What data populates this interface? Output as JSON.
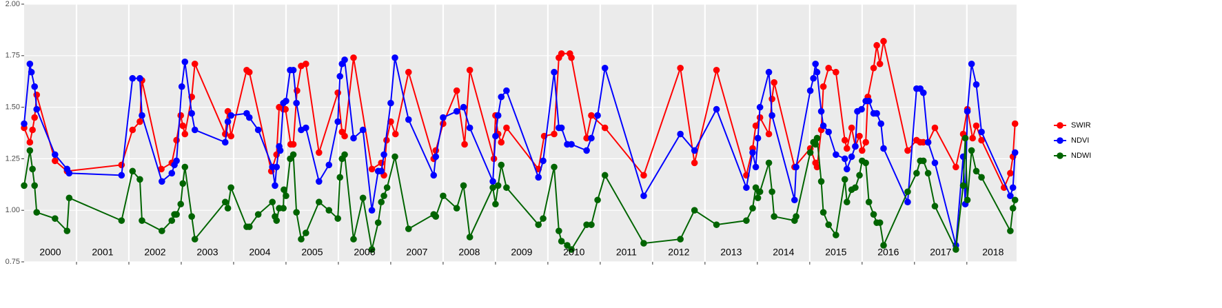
{
  "chart_data": {
    "type": "line",
    "xlim": [
      2000,
      2018.95
    ],
    "xticks": [
      2001,
      2002,
      2003,
      2004,
      2005,
      2006,
      2007,
      2008,
      2009,
      2010,
      2011,
      2012,
      2013,
      2014,
      2015,
      2016,
      2017,
      2018
    ],
    "ylim": [
      0.75,
      2.0
    ],
    "yticks": [
      0.75,
      {
        "value": 1,
        "label": "1.00"
      },
      1.25,
      {
        "value": 1.5,
        "label": "1.50"
      },
      1.75,
      {
        "value": 2,
        "label": "2.00"
      }
    ],
    "grid": true,
    "legend": "right",
    "annotations": [
      {
        "x": 2000.5,
        "text": "2000"
      },
      {
        "x": 2001.5,
        "text": "2001"
      },
      {
        "x": 2002.5,
        "text": "2002"
      },
      {
        "x": 2003.5,
        "text": "2003"
      },
      {
        "x": 2004.5,
        "text": "2004"
      },
      {
        "x": 2005.5,
        "text": "2005"
      },
      {
        "x": 2006.5,
        "text": "2006"
      },
      {
        "x": 2007.5,
        "text": "2007"
      },
      {
        "x": 2008.5,
        "text": "2008"
      },
      {
        "x": 2009.5,
        "text": "2009"
      },
      {
        "x": 2010.5,
        "text": "2010"
      },
      {
        "x": 2011.5,
        "text": "2011"
      },
      {
        "x": 2012.5,
        "text": "2012"
      },
      {
        "x": 2013.5,
        "text": "2013"
      },
      {
        "x": 2014.5,
        "text": "2014"
      },
      {
        "x": 2015.5,
        "text": "2015"
      },
      {
        "x": 2016.5,
        "text": "2016"
      },
      {
        "x": 2017.5,
        "text": "2017"
      },
      {
        "x": 2018.5,
        "text": "2018"
      }
    ],
    "series": [
      {
        "name": "SWIR",
        "color": "#ff0000",
        "x": [
          2000.0,
          2000.11,
          2000.16,
          2000.2,
          2000.24,
          2000.59,
          2000.82,
          2001.86,
          2002.07,
          2002.21,
          2002.25,
          2002.62,
          2002.82,
          2002.91,
          2002.99,
          2003.03,
          2003.07,
          2003.2,
          2003.26,
          2003.84,
          2003.89,
          2003.95,
          2004.25,
          2004.3,
          2004.72,
          2004.82,
          2004.87,
          2004.95,
          2004.99,
          2005.09,
          2005.14,
          2005.21,
          2005.29,
          2005.38,
          2005.63,
          2005.99,
          2006.07,
          2006.12,
          2006.29,
          2006.64,
          2006.82,
          2006.87,
          2006.92,
          2007.0,
          2007.09,
          2007.34,
          2007.82,
          2007.86,
          2008.0,
          2008.26,
          2008.41,
          2008.51,
          2008.97,
          2009.0,
          2009.05,
          2009.11,
          2009.21,
          2009.82,
          2009.93,
          2010.12,
          2010.21,
          2010.26,
          2010.42,
          2010.45,
          2010.74,
          2010.83,
          2011.09,
          2011.83,
          2012.53,
          2012.8,
          2013.22,
          2013.79,
          2013.91,
          2013.97,
          2014.05,
          2014.22,
          2014.28,
          2014.32,
          2014.71,
          2015.01,
          2015.11,
          2015.14,
          2015.22,
          2015.26,
          2015.36,
          2015.5,
          2015.67,
          2015.71,
          2015.8,
          2015.87,
          2015.95,
          2016.0,
          2016.07,
          2016.11,
          2016.22,
          2016.28,
          2016.34,
          2016.41,
          2016.87,
          2017.04,
          2017.11,
          2017.17,
          2017.26,
          2017.39,
          2017.79,
          2017.93,
          2018.01,
          2018.11,
          2018.18,
          2018.28,
          2018.71,
          2018.83,
          2018.88,
          2018.92
        ],
        "values": [
          1.4,
          1.33,
          1.39,
          1.45,
          1.56,
          1.24,
          1.19,
          1.22,
          1.39,
          1.43,
          1.63,
          1.2,
          1.23,
          1.34,
          1.46,
          1.41,
          1.37,
          1.55,
          1.71,
          1.37,
          1.48,
          1.36,
          1.68,
          1.67,
          1.19,
          1.27,
          1.5,
          1.49,
          1.49,
          1.32,
          1.32,
          1.58,
          1.7,
          1.71,
          1.28,
          1.57,
          1.38,
          1.36,
          1.74,
          1.2,
          1.23,
          1.17,
          1.34,
          1.43,
          1.37,
          1.67,
          1.25,
          1.29,
          1.42,
          1.58,
          1.32,
          1.68,
          1.25,
          1.46,
          1.37,
          1.33,
          1.4,
          1.2,
          1.36,
          1.37,
          1.74,
          1.76,
          1.76,
          1.74,
          1.35,
          1.46,
          1.4,
          1.17,
          1.69,
          1.23,
          1.68,
          1.17,
          1.3,
          1.41,
          1.45,
          1.37,
          1.54,
          1.62,
          1.21,
          1.3,
          1.23,
          1.21,
          1.39,
          1.6,
          1.69,
          1.67,
          1.34,
          1.3,
          1.4,
          1.31,
          1.36,
          1.29,
          1.33,
          1.55,
          1.69,
          1.8,
          1.71,
          1.82,
          1.29,
          1.34,
          1.33,
          1.33,
          1.33,
          1.4,
          1.21,
          1.37,
          1.49,
          1.35,
          1.41,
          1.34,
          1.11,
          1.18,
          1.26,
          1.42
        ]
      },
      {
        "name": "NDVI",
        "color": "#0000ff",
        "x": [
          2000.0,
          2000.11,
          2000.14,
          2000.2,
          2000.24,
          2000.59,
          2000.82,
          2000.86,
          2001.86,
          2002.07,
          2002.21,
          2002.25,
          2002.63,
          2002.82,
          2002.87,
          2002.91,
          2003.01,
          2003.07,
          2003.2,
          2003.26,
          2003.84,
          2003.89,
          2003.95,
          2004.25,
          2004.3,
          2004.47,
          2004.74,
          2004.79,
          2004.82,
          2004.87,
          2004.89,
          2004.95,
          2005.0,
          2005.08,
          2005.14,
          2005.2,
          2005.29,
          2005.38,
          2005.63,
          2005.82,
          2005.99,
          2006.03,
          2006.07,
          2006.12,
          2006.29,
          2006.47,
          2006.64,
          2006.76,
          2006.82,
          2006.87,
          2007.0,
          2007.08,
          2007.34,
          2007.82,
          2007.86,
          2008.0,
          2008.26,
          2008.39,
          2008.51,
          2008.95,
          2009.0,
          2009.05,
          2009.11,
          2009.21,
          2009.82,
          2009.91,
          2010.12,
          2010.21,
          2010.26,
          2010.37,
          2010.45,
          2010.74,
          2010.83,
          2010.95,
          2011.09,
          2011.83,
          2012.53,
          2012.8,
          2013.22,
          2013.79,
          2013.91,
          2013.97,
          2014.01,
          2014.05,
          2014.22,
          2014.28,
          2014.71,
          2014.74,
          2015.01,
          2015.07,
          2015.11,
          2015.14,
          2015.22,
          2015.26,
          2015.36,
          2015.5,
          2015.67,
          2015.71,
          2015.8,
          2015.87,
          2015.91,
          2015.99,
          2016.07,
          2016.13,
          2016.22,
          2016.28,
          2016.36,
          2016.41,
          2016.87,
          2017.04,
          2017.11,
          2017.17,
          2017.26,
          2017.39,
          2017.79,
          2017.93,
          2017.97,
          2018.01,
          2018.09,
          2018.18,
          2018.28,
          2018.83,
          2018.88,
          2018.92
        ],
        "values": [
          1.42,
          1.71,
          1.67,
          1.6,
          1.49,
          1.27,
          1.2,
          1.18,
          1.17,
          1.64,
          1.64,
          1.46,
          1.14,
          1.18,
          1.22,
          1.24,
          1.6,
          1.72,
          1.47,
          1.39,
          1.33,
          1.43,
          1.46,
          1.47,
          1.45,
          1.39,
          1.21,
          1.12,
          1.21,
          1.31,
          1.29,
          1.52,
          1.53,
          1.68,
          1.68,
          1.52,
          1.39,
          1.4,
          1.14,
          1.22,
          1.43,
          1.65,
          1.71,
          1.73,
          1.35,
          1.39,
          1.0,
          1.19,
          1.19,
          1.27,
          1.52,
          1.74,
          1.44,
          1.17,
          1.26,
          1.45,
          1.48,
          1.5,
          1.4,
          1.14,
          1.36,
          1.46,
          1.55,
          1.58,
          1.16,
          1.24,
          1.67,
          1.4,
          1.4,
          1.32,
          1.32,
          1.29,
          1.35,
          1.46,
          1.69,
          1.07,
          1.37,
          1.29,
          1.49,
          1.11,
          1.28,
          1.21,
          1.35,
          1.5,
          1.67,
          1.46,
          1.05,
          1.21,
          1.58,
          1.64,
          1.71,
          1.67,
          1.48,
          1.41,
          1.38,
          1.27,
          1.25,
          1.2,
          1.26,
          1.31,
          1.48,
          1.49,
          1.53,
          1.53,
          1.47,
          1.47,
          1.42,
          1.3,
          1.04,
          1.59,
          1.59,
          1.57,
          1.33,
          1.23,
          0.83,
          1.26,
          1.03,
          1.48,
          1.71,
          1.61,
          1.38,
          1.07,
          1.11,
          1.28
        ]
      },
      {
        "name": "NDWI",
        "color": "#006400",
        "x": [
          2000.0,
          2000.11,
          2000.16,
          2000.2,
          2000.24,
          2000.59,
          2000.82,
          2000.86,
          2001.86,
          2002.07,
          2002.21,
          2002.25,
          2002.63,
          2002.82,
          2002.87,
          2002.91,
          2002.99,
          2003.03,
          2003.07,
          2003.2,
          2003.26,
          2003.84,
          2003.89,
          2003.95,
          2004.25,
          2004.3,
          2004.47,
          2004.74,
          2004.79,
          2004.82,
          2004.87,
          2004.95,
          2004.96,
          2005.0,
          2005.08,
          2005.14,
          2005.2,
          2005.29,
          2005.38,
          2005.63,
          2005.82,
          2005.99,
          2006.03,
          2006.07,
          2006.12,
          2006.29,
          2006.47,
          2006.64,
          2006.76,
          2006.82,
          2006.87,
          2006.93,
          2007.08,
          2007.34,
          2007.82,
          2007.86,
          2008.0,
          2008.26,
          2008.39,
          2008.51,
          2008.95,
          2009.0,
          2009.05,
          2009.11,
          2009.21,
          2009.82,
          2009.91,
          2010.12,
          2010.21,
          2010.26,
          2010.37,
          2010.45,
          2010.74,
          2010.83,
          2010.95,
          2011.09,
          2011.83,
          2012.53,
          2012.8,
          2013.22,
          2013.79,
          2013.91,
          2013.97,
          2014.01,
          2014.05,
          2014.22,
          2014.28,
          2014.32,
          2014.71,
          2014.74,
          2015.01,
          2015.07,
          2015.11,
          2015.14,
          2015.22,
          2015.26,
          2015.36,
          2015.5,
          2015.67,
          2015.71,
          2015.8,
          2015.87,
          2015.95,
          2016.0,
          2016.07,
          2016.13,
          2016.22,
          2016.28,
          2016.34,
          2016.41,
          2016.87,
          2017.04,
          2017.11,
          2017.17,
          2017.26,
          2017.39,
          2017.79,
          2017.93,
          2017.97,
          2018.01,
          2018.09,
          2018.18,
          2018.28,
          2018.83,
          2018.88,
          2018.92
        ],
        "values": [
          1.12,
          1.29,
          1.2,
          1.12,
          0.99,
          0.96,
          0.9,
          1.06,
          0.95,
          1.19,
          1.15,
          0.95,
          0.9,
          0.95,
          0.98,
          0.98,
          1.03,
          1.13,
          1.21,
          0.97,
          0.86,
          1.04,
          1.01,
          1.11,
          0.92,
          0.92,
          0.98,
          1.04,
          0.97,
          0.95,
          1.01,
          1.01,
          1.1,
          1.07,
          1.25,
          1.27,
          0.99,
          0.86,
          0.89,
          1.04,
          1.0,
          0.96,
          1.16,
          1.25,
          1.27,
          0.86,
          1.06,
          0.81,
          0.94,
          1.04,
          1.07,
          1.11,
          1.26,
          0.91,
          0.98,
          0.97,
          1.07,
          1.01,
          1.12,
          0.87,
          1.11,
          1.03,
          1.12,
          1.22,
          1.11,
          0.93,
          0.96,
          1.21,
          0.9,
          0.85,
          0.83,
          0.81,
          0.93,
          0.93,
          1.05,
          1.17,
          0.84,
          0.86,
          1.0,
          0.93,
          0.95,
          1.01,
          1.11,
          1.06,
          1.09,
          1.23,
          1.09,
          0.97,
          0.95,
          0.97,
          1.28,
          1.33,
          1.32,
          1.35,
          1.14,
          0.99,
          0.93,
          0.88,
          1.15,
          1.04,
          1.1,
          1.11,
          1.17,
          1.24,
          1.23,
          1.04,
          0.98,
          0.94,
          0.94,
          0.83,
          1.09,
          1.18,
          1.24,
          1.24,
          1.18,
          1.02,
          0.81,
          1.12,
          1.35,
          1.05,
          1.29,
          1.19,
          1.16,
          0.9,
          1.01,
          1.05
        ]
      }
    ]
  }
}
